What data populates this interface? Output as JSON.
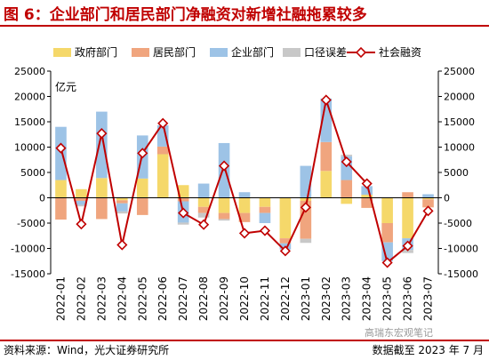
{
  "title": "图 6：企业部门和居民部门净融资对新增社融拖累较多",
  "source": "资料来源：Wind，光大证券研究所",
  "note": "数据截至 2023 年 7 月",
  "watermark": "高瑞东宏观笔记",
  "chart_data": {
    "type": "bar",
    "stacked": true,
    "ylabel": "亿元",
    "ylim": [
      -15000,
      25000
    ],
    "yticks": [
      -15000,
      -10000,
      -5000,
      0,
      5000,
      10000,
      15000,
      20000,
      25000
    ],
    "legend_position": "top",
    "categories": [
      "2022-01",
      "2022-02",
      "2022-03",
      "2022-04",
      "2022-05",
      "2022-06",
      "2022-07",
      "2022-08",
      "2022-09",
      "2022-10",
      "2022-11",
      "2022-12",
      "2023-01",
      "2023-02",
      "2023-03",
      "2023-04",
      "2023-05",
      "2023-06",
      "2023-07"
    ],
    "series": [
      {
        "name": "政府部门",
        "kind": "bar",
        "color": "#f5d86a",
        "values": [
          3500,
          1700,
          3900,
          -500,
          3800,
          8600,
          2500,
          -1800,
          -3000,
          -3000,
          -1800,
          -8000,
          -600,
          5300,
          -1200,
          600,
          -5000,
          -8000,
          -300
        ]
      },
      {
        "name": "居民部门",
        "kind": "bar",
        "color": "#f0a57e",
        "values": [
          -4300,
          -600,
          -4200,
          -600,
          -3400,
          1500,
          -700,
          -1200,
          -1200,
          -1800,
          -1200,
          -1000,
          -7500,
          5700,
          3500,
          -2000,
          -3800,
          1100,
          -1600
        ]
      },
      {
        "name": "企业部门",
        "kind": "bar",
        "color": "#9dc3e6",
        "values": [
          10500,
          -800,
          13100,
          -1600,
          8500,
          4200,
          -4200,
          2800,
          10800,
          1100,
          -2000,
          -1200,
          6300,
          8600,
          4700,
          1700,
          -3700,
          -2300,
          700
        ]
      },
      {
        "name": "口径误差",
        "kind": "bar",
        "color": "#c8c8c8",
        "values": [
          0,
          -300,
          0,
          -400,
          0,
          0,
          -400,
          -900,
          -300,
          0,
          0,
          0,
          -800,
          0,
          300,
          0,
          0,
          -600,
          0
        ]
      },
      {
        "name": "社会融资",
        "kind": "line",
        "color": "#c00000",
        "values": [
          9800,
          -5200,
          12700,
          -9300,
          8800,
          14700,
          -3000,
          -5300,
          6300,
          -7000,
          -6500,
          -10500,
          -1900,
          19300,
          7100,
          2800,
          -12800,
          -9500,
          -2600
        ]
      }
    ]
  }
}
